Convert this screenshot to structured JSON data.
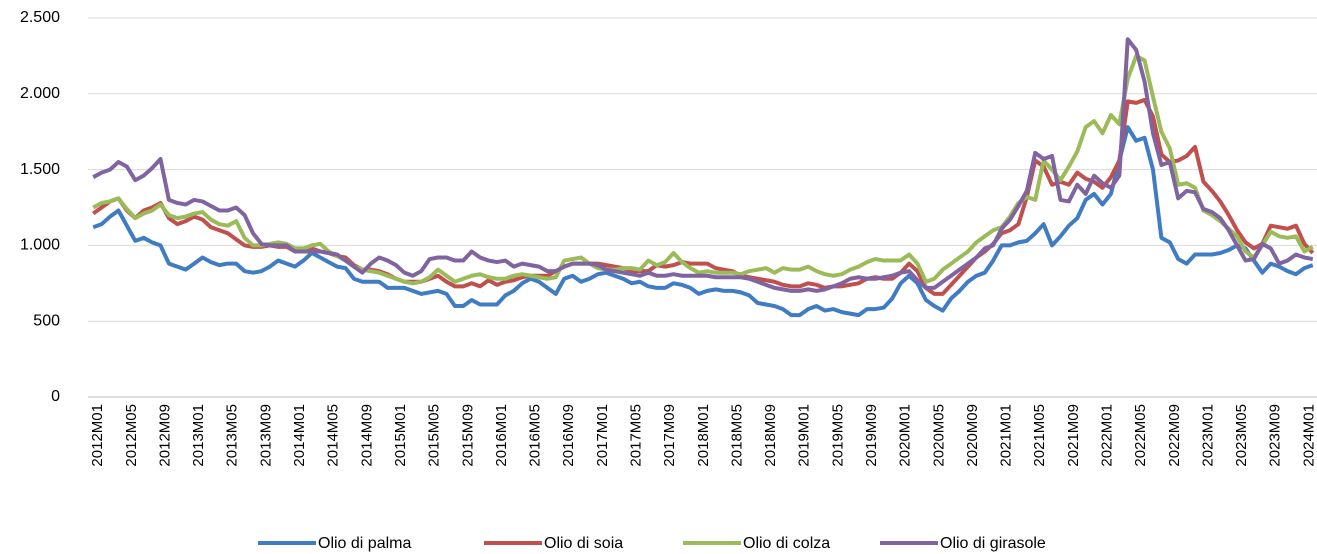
{
  "chart_data": {
    "type": "line",
    "categories": [
      "2012M01",
      null,
      null,
      null,
      "2012M05",
      null,
      null,
      null,
      "2012M09",
      null,
      null,
      null,
      "2013M01",
      null,
      null,
      null,
      "2013M05",
      null,
      null,
      null,
      "2013M09",
      null,
      null,
      null,
      "2014M01",
      null,
      null,
      null,
      "2014M05",
      null,
      null,
      null,
      "2014M09",
      null,
      null,
      null,
      "2015M01",
      null,
      null,
      null,
      "2015M05",
      null,
      null,
      null,
      "2015M09",
      null,
      null,
      null,
      "2016M01",
      null,
      null,
      null,
      "2016M05",
      null,
      null,
      null,
      "2016M09",
      null,
      null,
      null,
      "2017M01",
      null,
      null,
      null,
      "2017M05",
      null,
      null,
      null,
      "2017M09",
      null,
      null,
      null,
      "2018M01",
      null,
      null,
      null,
      "2018M05",
      null,
      null,
      null,
      "2018M09",
      null,
      null,
      null,
      "2019M01",
      null,
      null,
      null,
      "2019M05",
      null,
      null,
      null,
      "2019M09",
      null,
      null,
      null,
      "2020M01",
      null,
      null,
      null,
      "2020M05",
      null,
      null,
      null,
      "2020M09",
      null,
      null,
      null,
      "2021M01",
      null,
      null,
      null,
      "2021M05",
      null,
      null,
      null,
      "2021M09",
      null,
      null,
      null,
      "2022M01",
      null,
      null,
      null,
      "2022M05",
      null,
      null,
      null,
      "2022M09",
      null,
      null,
      null,
      "2023M01",
      null,
      null,
      null,
      "2023M05",
      null,
      null,
      null,
      "2023M09",
      null,
      null,
      null,
      "2024M01",
      null
    ],
    "series": [
      {
        "name": "Olio di palma",
        "color": "#3f7cc4",
        "values": [
          1120,
          1140,
          1190,
          1230,
          1130,
          1030,
          1050,
          1020,
          1000,
          880,
          860,
          840,
          880,
          920,
          890,
          870,
          880,
          880,
          830,
          820,
          830,
          860,
          900,
          880,
          860,
          900,
          950,
          920,
          890,
          860,
          850,
          780,
          760,
          760,
          760,
          720,
          720,
          720,
          700,
          680,
          690,
          700,
          680,
          600,
          600,
          640,
          610,
          610,
          610,
          670,
          700,
          750,
          780,
          760,
          720,
          680,
          780,
          800,
          760,
          780,
          810,
          820,
          800,
          780,
          750,
          760,
          730,
          720,
          720,
          750,
          740,
          720,
          680,
          700,
          710,
          700,
          700,
          690,
          670,
          620,
          610,
          600,
          580,
          540,
          540,
          580,
          600,
          570,
          580,
          560,
          550,
          540,
          580,
          580,
          590,
          650,
          750,
          800,
          750,
          640,
          600,
          570,
          650,
          700,
          760,
          800,
          820,
          900,
          1000,
          1000,
          1020,
          1030,
          1080,
          1140,
          1000,
          1060,
          1130,
          1180,
          1300,
          1340,
          1270,
          1340,
          1560,
          1780,
          1690,
          1710,
          1500,
          1050,
          1020,
          910,
          880,
          940,
          940,
          940,
          950,
          970,
          1000,
          980,
          900,
          820,
          880,
          860,
          830,
          810,
          850,
          870
        ]
      },
      {
        "name": "Olio di soia",
        "color": "#c0504d",
        "values": [
          1210,
          1250,
          1290,
          1310,
          1230,
          1180,
          1230,
          1250,
          1280,
          1180,
          1140,
          1160,
          1190,
          1170,
          1120,
          1100,
          1080,
          1040,
          1000,
          990,
          990,
          1000,
          990,
          990,
          960,
          960,
          980,
          960,
          950,
          930,
          920,
          870,
          840,
          840,
          830,
          810,
          780,
          760,
          760,
          760,
          780,
          800,
          760,
          730,
          730,
          750,
          730,
          770,
          740,
          760,
          770,
          790,
          800,
          800,
          800,
          830,
          860,
          880,
          880,
          880,
          880,
          870,
          860,
          850,
          830,
          830,
          830,
          870,
          860,
          870,
          890,
          880,
          880,
          880,
          850,
          840,
          830,
          800,
          790,
          780,
          770,
          760,
          740,
          730,
          730,
          750,
          740,
          720,
          730,
          730,
          740,
          750,
          780,
          790,
          780,
          780,
          820,
          880,
          830,
          720,
          680,
          680,
          740,
          800,
          860,
          920,
          960,
          1010,
          1080,
          1100,
          1140,
          1320,
          1560,
          1520,
          1400,
          1420,
          1400,
          1480,
          1440,
          1420,
          1380,
          1450,
          1560,
          1950,
          1940,
          1960,
          1850,
          1600,
          1550,
          1560,
          1590,
          1650,
          1420,
          1360,
          1290,
          1200,
          1100,
          1020,
          980,
          1010,
          1130,
          1120,
          1110,
          1130,
          1010,
          950
        ]
      },
      {
        "name": "Olio di colza",
        "color": "#9bbb59",
        "values": [
          1250,
          1280,
          1290,
          1310,
          1240,
          1180,
          1210,
          1230,
          1270,
          1200,
          1180,
          1190,
          1210,
          1220,
          1170,
          1140,
          1130,
          1160,
          1050,
          1000,
          1000,
          1010,
          1020,
          1010,
          980,
          980,
          1000,
          1010,
          960,
          930,
          900,
          860,
          840,
          830,
          820,
          800,
          780,
          760,
          750,
          760,
          790,
          840,
          800,
          760,
          780,
          800,
          810,
          790,
          780,
          780,
          800,
          810,
          800,
          790,
          780,
          790,
          900,
          910,
          920,
          880,
          850,
          840,
          840,
          850,
          850,
          840,
          900,
          870,
          890,
          950,
          890,
          850,
          820,
          830,
          820,
          820,
          820,
          810,
          830,
          840,
          850,
          820,
          850,
          840,
          840,
          860,
          830,
          810,
          800,
          810,
          840,
          860,
          890,
          910,
          900,
          900,
          900,
          940,
          880,
          760,
          780,
          840,
          880,
          920,
          960,
          1020,
          1060,
          1100,
          1120,
          1190,
          1280,
          1320,
          1300,
          1560,
          1500,
          1430,
          1520,
          1620,
          1780,
          1820,
          1740,
          1860,
          1800,
          2100,
          2250,
          2220,
          1980,
          1750,
          1640,
          1400,
          1410,
          1380,
          1230,
          1200,
          1160,
          1110,
          1060,
          960,
          920,
          1000,
          1090,
          1060,
          1050,
          1060,
          960,
          990
        ]
      },
      {
        "name": "Olio di girasole",
        "color": "#8064a2",
        "values": [
          1450,
          1480,
          1500,
          1550,
          1520,
          1430,
          1460,
          1510,
          1570,
          1300,
          1280,
          1270,
          1300,
          1290,
          1260,
          1230,
          1230,
          1250,
          1200,
          1080,
          1010,
          1000,
          1000,
          1000,
          960,
          960,
          960,
          960,
          950,
          940,
          900,
          860,
          820,
          880,
          920,
          900,
          870,
          820,
          800,
          830,
          910,
          920,
          920,
          900,
          900,
          960,
          920,
          900,
          890,
          900,
          860,
          880,
          870,
          860,
          830,
          830,
          860,
          880,
          880,
          880,
          870,
          840,
          830,
          820,
          810,
          800,
          820,
          800,
          800,
          810,
          800,
          800,
          800,
          800,
          790,
          790,
          790,
          790,
          780,
          760,
          740,
          720,
          710,
          700,
          700,
          710,
          700,
          710,
          730,
          750,
          780,
          790,
          780,
          780,
          790,
          800,
          820,
          830,
          770,
          720,
          720,
          760,
          800,
          840,
          880,
          920,
          980,
          1000,
          1110,
          1170,
          1260,
          1360,
          1610,
          1570,
          1590,
          1300,
          1290,
          1400,
          1340,
          1460,
          1410,
          1380,
          1460,
          2360,
          2290,
          2080,
          1740,
          1530,
          1550,
          1310,
          1360,
          1350,
          1240,
          1220,
          1180,
          1100,
          1000,
          900,
          910,
          1010,
          980,
          880,
          900,
          940,
          920,
          910
        ]
      }
    ],
    "ylim": [
      0,
      2500
    ],
    "yticks": [
      0,
      500,
      {
        "value": 1000,
        "label": "1.000"
      },
      {
        "value": 1500,
        "label": "1.500"
      },
      {
        "value": 2000,
        "label": "2.000"
      },
      {
        "value": 2500,
        "label": "2.500"
      }
    ],
    "grid": true,
    "legend": "bottom"
  }
}
